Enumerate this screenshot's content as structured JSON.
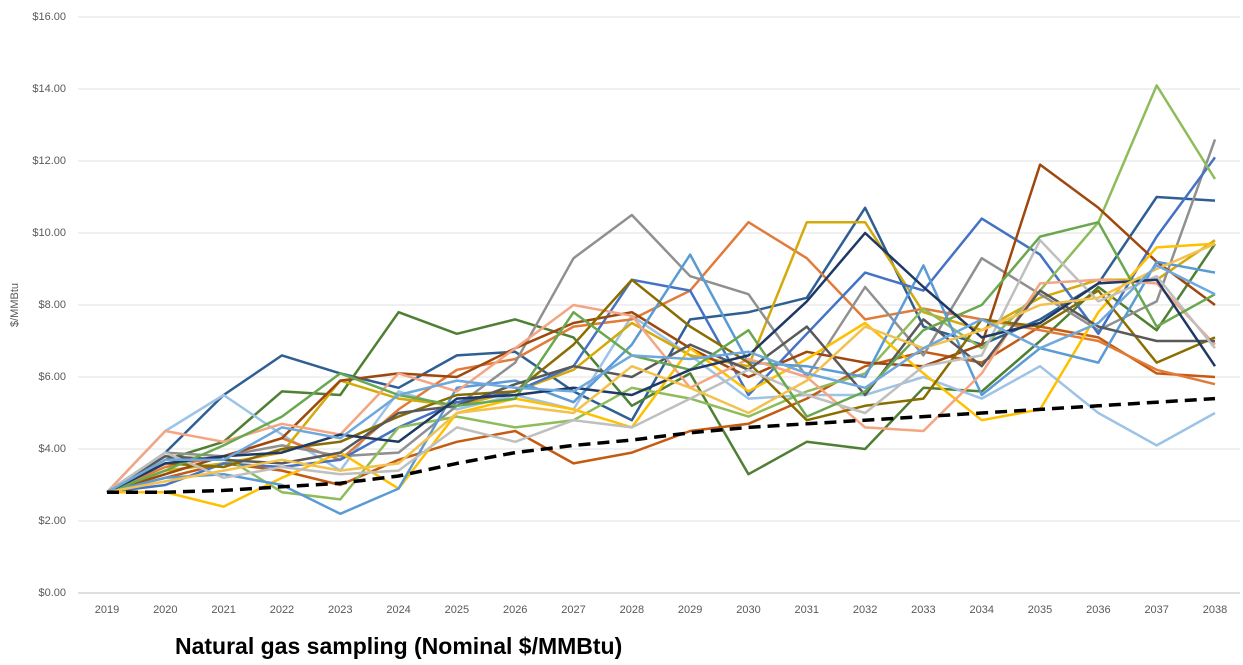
{
  "chart_data": {
    "type": "line",
    "title": "Natural gas sampling (Nominal $/MMBtu)",
    "y_label": "$/MMBtu",
    "categories": [
      "2019",
      "2020",
      "2021",
      "2022",
      "2023",
      "2024",
      "2025",
      "2026",
      "2027",
      "2028",
      "2029",
      "2030",
      "2031",
      "2032",
      "2033",
      "2034",
      "2035",
      "2036",
      "2037",
      "2038"
    ],
    "ylim": [
      0,
      16
    ],
    "yticks": [
      {
        "value": 0,
        "label": "$0.00"
      },
      {
        "value": 2,
        "label": "$2.00"
      },
      {
        "value": 4,
        "label": "$4.00"
      },
      {
        "value": 6,
        "label": "$6.00"
      },
      {
        "value": 8,
        "label": "$8.00"
      },
      {
        "value": 10,
        "label": "$10.00"
      },
      {
        "value": 12,
        "label": "$12.00"
      },
      {
        "value": 14,
        "label": "$14.00"
      },
      {
        "value": 16,
        "label": "$16.00"
      }
    ],
    "grid": true,
    "series": [
      {
        "color": "#2e5f94",
        "values": [
          2.8,
          3.9,
          5.5,
          6.6,
          6.1,
          5.7,
          6.6,
          6.7,
          5.6,
          4.8,
          7.6,
          7.8,
          8.2,
          10.7,
          7.4,
          6.9,
          7.6,
          8.6,
          11.0,
          10.9
        ]
      },
      {
        "color": "#4f7f33",
        "values": [
          2.8,
          3.7,
          4.2,
          5.6,
          5.5,
          7.8,
          7.2,
          7.6,
          7.1,
          5.2,
          6.1,
          3.3,
          4.2,
          4.0,
          5.7,
          5.6,
          7.0,
          8.5,
          7.3,
          9.7
        ]
      },
      {
        "color": "#9dc3e6",
        "values": [
          2.8,
          4.5,
          5.5,
          4.4,
          3.4,
          5.6,
          5.1,
          5.5,
          5.1,
          7.7,
          6.6,
          5.4,
          5.5,
          5.5,
          6.0,
          5.4,
          6.3,
          5.0,
          4.1,
          5.0
        ]
      },
      {
        "color": "#c55a11",
        "values": [
          2.8,
          3.2,
          3.6,
          3.4,
          3.0,
          3.7,
          4.2,
          4.5,
          3.6,
          3.9,
          4.5,
          4.7,
          5.4,
          6.3,
          6.7,
          6.4,
          7.4,
          7.1,
          6.1,
          6.0
        ]
      },
      {
        "color": "#e07b39",
        "values": [
          2.8,
          3.5,
          3.8,
          4.3,
          3.7,
          5.1,
          6.2,
          6.5,
          7.4,
          7.6,
          8.4,
          10.3,
          9.3,
          7.6,
          7.9,
          7.6,
          7.3,
          7.0,
          6.2,
          5.8
        ]
      },
      {
        "color": "#d4a90a",
        "values": [
          2.8,
          3.4,
          3.6,
          3.9,
          5.9,
          5.4,
          5.2,
          5.6,
          6.2,
          7.5,
          6.6,
          6.3,
          10.3,
          10.3,
          7.8,
          7.3,
          8.2,
          8.7,
          8.7,
          9.8
        ]
      },
      {
        "color": "#909090",
        "values": [
          2.8,
          3.9,
          3.8,
          4.1,
          3.8,
          3.9,
          5.2,
          6.4,
          9.3,
          10.5,
          8.8,
          8.3,
          6.0,
          8.5,
          6.6,
          9.3,
          8.3,
          7.3,
          8.1,
          12.6
        ]
      },
      {
        "color": "#4472c4",
        "values": [
          2.8,
          3.0,
          3.6,
          3.5,
          3.7,
          4.6,
          5.3,
          5.6,
          6.3,
          8.7,
          8.4,
          5.5,
          7.2,
          8.9,
          8.4,
          10.4,
          9.4,
          7.2,
          9.9,
          12.1
        ]
      },
      {
        "color": "#8fbc5a",
        "values": [
          2.8,
          3.3,
          3.8,
          2.8,
          2.6,
          4.6,
          4.9,
          4.6,
          4.8,
          5.7,
          5.4,
          4.9,
          5.6,
          6.1,
          7.9,
          6.8,
          8.4,
          10.3,
          14.1,
          11.5
        ]
      },
      {
        "color": "#9e480e",
        "values": [
          2.8,
          3.3,
          3.8,
          4.3,
          5.9,
          6.1,
          6.0,
          6.8,
          7.5,
          7.8,
          6.8,
          6.0,
          6.7,
          6.4,
          6.3,
          6.9,
          11.9,
          10.7,
          9.2,
          8.0
        ]
      },
      {
        "color": "#ffc000",
        "values": [
          2.8,
          2.8,
          2.4,
          3.2,
          3.9,
          2.9,
          5.0,
          5.4,
          5.1,
          4.6,
          6.8,
          5.6,
          6.5,
          7.5,
          6.1,
          4.8,
          5.1,
          7.8,
          9.6,
          9.7
        ]
      },
      {
        "color": "#5b9bd5",
        "values": [
          2.8,
          3.2,
          3.3,
          3.0,
          2.2,
          2.9,
          5.7,
          5.9,
          5.3,
          6.9,
          9.4,
          6.4,
          6.3,
          6.0,
          9.1,
          5.5,
          6.8,
          6.4,
          9.2,
          8.9
        ]
      },
      {
        "color": "#f4a582",
        "values": [
          2.8,
          4.5,
          4.2,
          4.7,
          4.4,
          6.1,
          5.6,
          6.8,
          8.0,
          7.7,
          5.7,
          6.5,
          6.0,
          4.6,
          4.5,
          6.1,
          8.6,
          8.7,
          8.6,
          6.9
        ]
      },
      {
        "color": "#8a6d00",
        "values": [
          2.8,
          3.6,
          3.5,
          4.0,
          4.2,
          4.9,
          5.5,
          5.6,
          6.9,
          8.7,
          7.4,
          6.4,
          4.8,
          5.2,
          5.4,
          7.6,
          7.4,
          8.4,
          6.4,
          7.1
        ]
      },
      {
        "color": "#595959",
        "values": [
          2.8,
          3.8,
          3.7,
          3.6,
          3.9,
          5.0,
          5.2,
          5.8,
          6.3,
          6.0,
          6.9,
          6.2,
          7.4,
          5.5,
          7.6,
          6.3,
          8.4,
          7.4,
          7.0,
          7.0
        ]
      },
      {
        "color": "#bfbfbf",
        "values": [
          2.8,
          3.9,
          3.2,
          3.5,
          3.3,
          3.4,
          4.6,
          4.2,
          4.8,
          4.6,
          5.4,
          6.2,
          5.5,
          5.0,
          6.3,
          6.6,
          9.8,
          8.1,
          8.8,
          6.8
        ]
      },
      {
        "color": "#6aa84f",
        "values": [
          2.8,
          3.4,
          4.1,
          4.9,
          6.1,
          5.5,
          5.2,
          5.4,
          7.8,
          6.6,
          6.2,
          7.3,
          4.9,
          5.6,
          7.3,
          8.0,
          9.9,
          10.3,
          7.4,
          8.3
        ]
      },
      {
        "color": "#1f3864",
        "values": [
          2.8,
          3.6,
          3.8,
          3.9,
          4.4,
          4.2,
          5.4,
          5.5,
          5.7,
          5.5,
          6.2,
          6.6,
          8.1,
          10.0,
          8.5,
          7.1,
          7.5,
          8.6,
          8.7,
          6.3
        ]
      },
      {
        "color": "#f2c14e",
        "values": [
          2.8,
          3.1,
          3.4,
          3.7,
          3.4,
          3.6,
          5.0,
          5.2,
          5.0,
          6.3,
          5.7,
          5.0,
          5.9,
          7.4,
          6.8,
          7.3,
          8.0,
          8.2,
          9.0,
          9.7
        ]
      },
      {
        "color": "#6fa8dc",
        "values": [
          2.8,
          3.7,
          3.7,
          4.6,
          4.3,
          5.5,
          5.9,
          5.7,
          5.6,
          6.6,
          6.5,
          6.7,
          6.1,
          5.7,
          6.8,
          7.6,
          6.8,
          7.5,
          9.1,
          8.3
        ]
      },
      {
        "color": "#000000",
        "dashed": true,
        "values": [
          2.8,
          2.8,
          2.85,
          2.95,
          3.05,
          3.25,
          3.6,
          3.9,
          4.1,
          4.25,
          4.45,
          4.6,
          4.7,
          4.8,
          4.9,
          5.0,
          5.1,
          5.2,
          5.3,
          5.4
        ]
      }
    ]
  }
}
